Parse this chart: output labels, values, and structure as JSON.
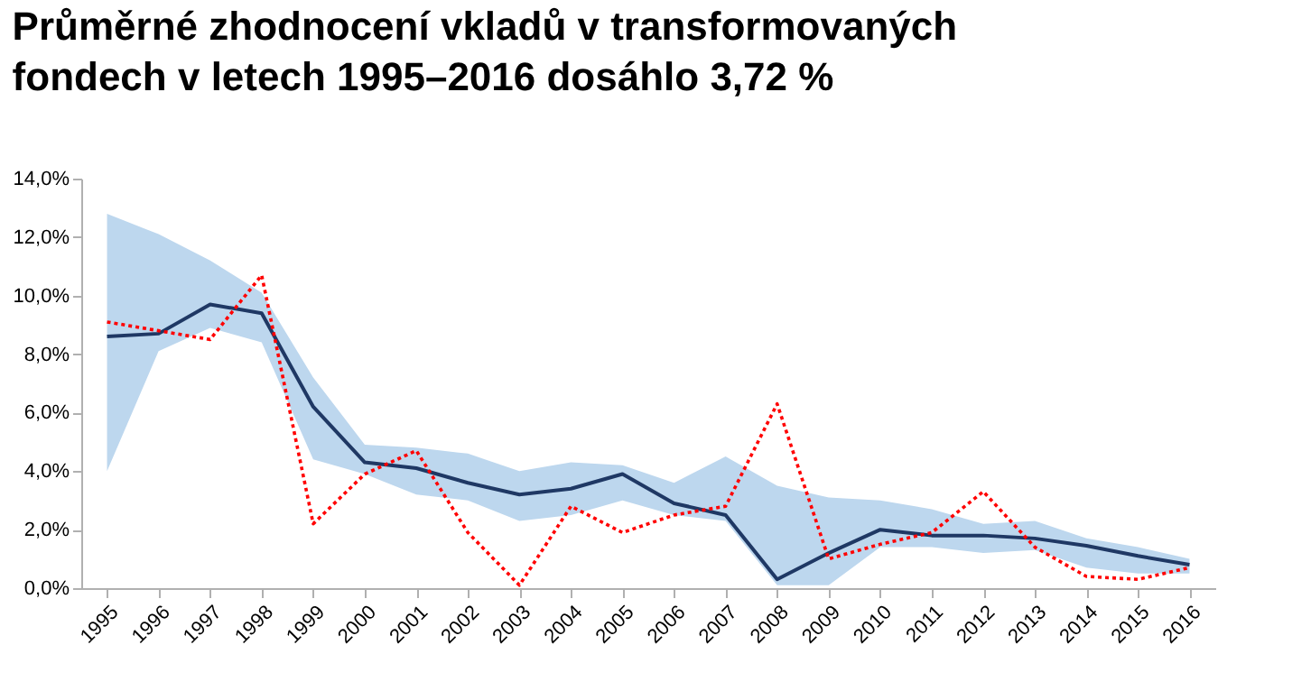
{
  "chart_data": {
    "type": "line",
    "title": "Průměrné zhodnocení vkladů v transformovaných fondech v letech 1995–2016 dosáhlo 3,72 %",
    "categories": [
      "1995",
      "1996",
      "1997",
      "1998",
      "1999",
      "2000",
      "2001",
      "2002",
      "2003",
      "2004",
      "2005",
      "2006",
      "2007",
      "2008",
      "2009",
      "2010",
      "2011",
      "2012",
      "2013",
      "2014",
      "2015",
      "2016"
    ],
    "series": [
      {
        "type": "line",
        "color": "#1f3864",
        "line_style": "solid",
        "values": [
          8.6,
          8.7,
          9.7,
          9.4,
          6.2,
          4.3,
          4.1,
          3.6,
          3.2,
          3.4,
          3.9,
          2.9,
          2.5,
          0.3,
          1.2,
          2.0,
          1.8,
          1.8,
          1.7,
          1.45,
          1.1,
          0.8
        ],
        "upper": [
          12.8,
          12.1,
          11.2,
          10.1,
          7.2,
          4.9,
          4.8,
          4.6,
          4.0,
          4.3,
          4.2,
          3.6,
          4.5,
          3.5,
          3.1,
          3.0,
          2.7,
          2.2,
          2.3,
          1.7,
          1.4,
          1.0
        ],
        "lower": [
          4.0,
          8.1,
          8.9,
          8.4,
          4.4,
          3.9,
          3.2,
          3.0,
          2.3,
          2.5,
          3.0,
          2.5,
          2.3,
          0.1,
          0.1,
          1.4,
          1.4,
          1.2,
          1.3,
          0.7,
          0.5,
          0.5
        ]
      },
      {
        "type": "line",
        "color": "#ff0000",
        "line_style": "dotted",
        "values": [
          9.1,
          8.8,
          8.5,
          10.7,
          2.2,
          3.9,
          4.7,
          1.9,
          0.1,
          2.8,
          1.9,
          2.5,
          2.8,
          6.3,
          1.0,
          1.5,
          1.9,
          3.3,
          1.4,
          0.4,
          0.3,
          0.7
        ]
      }
    ],
    "ylim": [
      0,
      14
    ],
    "yticks": [
      {
        "value": 0,
        "label": "0,0%"
      },
      {
        "value": 2,
        "label": "2,0%"
      },
      {
        "value": 4,
        "label": "4,0%"
      },
      {
        "value": 6,
        "label": "6,0%"
      },
      {
        "value": 8,
        "label": "8,0%"
      },
      {
        "value": 10,
        "label": "10,0%"
      },
      {
        "value": 12,
        "label": "12,0%"
      },
      {
        "value": 14,
        "label": "14,0%"
      }
    ],
    "grid": false,
    "legend": false,
    "marker": "none"
  }
}
